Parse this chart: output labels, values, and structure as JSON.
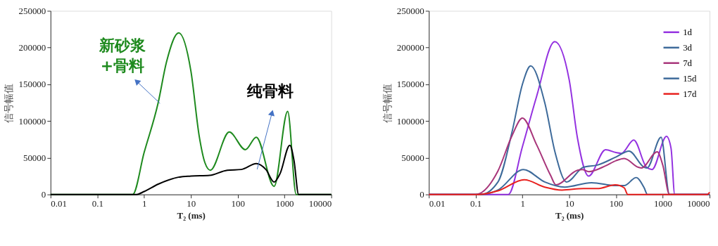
{
  "chart_data": [
    {
      "type": "line",
      "xlabel": "T₂ (ms)",
      "ylabel": "信号幅值",
      "log": "x",
      "xlim": [
        0.01,
        10000
      ],
      "xticks": [
        0.01,
        0.1,
        1,
        10,
        100,
        1000,
        10000
      ],
      "ylim": [
        0,
        250000
      ],
      "yticks": [
        0,
        50000,
        100000,
        150000,
        200000,
        250000
      ],
      "grid": false,
      "legend": false,
      "marker": "none",
      "line_style": "solid",
      "series": [
        {
          "name": "新砂浆\n+骨料",
          "color": "#1e8a1e",
          "x": [
            0.01,
            0.1,
            0.57,
            1,
            2,
            3,
            5.5,
            10,
            15,
            20,
            26,
            66,
            146,
            250,
            600,
            1170,
            1780,
            10000
          ],
          "values": [
            0,
            0,
            0,
            57000,
            125000,
            180000,
            220000,
            168000,
            80000,
            43000,
            33000,
            85000,
            61000,
            78000,
            11000,
            113000,
            0,
            0
          ]
        },
        {
          "name": "纯骨料",
          "color": "#000000",
          "x": [
            0.01,
            0.1,
            0.69,
            1,
            2,
            5,
            10,
            25,
            60,
            120,
            250,
            400,
            600,
            800,
            1300,
            1600,
            2000,
            10000
          ],
          "values": [
            0,
            0,
            0,
            4000,
            14000,
            23000,
            25000,
            26000,
            33000,
            34000,
            42000,
            34000,
            17000,
            28000,
            67000,
            46000,
            0,
            0
          ]
        }
      ]
    },
    {
      "type": "line",
      "xlabel": "T₂ (ms)",
      "ylabel": "信号幅值",
      "log": "x",
      "xlim": [
        0.01,
        10000
      ],
      "xticks": [
        0.01,
        0.1,
        1,
        10,
        100,
        1000,
        10000
      ],
      "ylim": [
        0,
        250000
      ],
      "yticks": [
        0,
        50000,
        100000,
        150000,
        200000,
        250000
      ],
      "grid": false,
      "legend": "top right",
      "marker": "none",
      "line_style": "solid",
      "series": [
        {
          "name": "1d",
          "color": "#9432e0",
          "x": [
            0.01,
            0.1,
            0.5,
            1,
            2,
            4.9,
            10,
            15,
            26,
            60,
            100,
            130,
            240,
            450,
            590,
            1200,
            1500,
            1800,
            10000
          ],
          "values": [
            0,
            0,
            0,
            65000,
            133000,
            208000,
            156000,
            77000,
            25000,
            61000,
            57000,
            56000,
            74000,
            37000,
            34000,
            79000,
            63000,
            0,
            0
          ]
        },
        {
          "name": "3d",
          "color": "#3d6a9a",
          "x": [
            0.01,
            0.13,
            0.3,
            0.6,
            1,
            1.5,
            3,
            5,
            8.8,
            20,
            40,
            100,
            190,
            400,
            460,
            920,
            1390,
            10000
          ],
          "values": [
            0,
            0,
            17000,
            85000,
            150000,
            175000,
            125000,
            57000,
            17000,
            37000,
            40000,
            51000,
            59000,
            37000,
            36000,
            78000,
            0,
            0
          ]
        },
        {
          "name": "7d",
          "color": "#a8357a",
          "x": [
            0.01,
            0.1,
            0.3,
            0.6,
            1,
            2,
            4,
            5.2,
            15,
            19,
            26,
            60,
            100,
            150,
            300,
            350,
            760,
            1000,
            1390,
            10000
          ],
          "values": [
            0,
            0,
            32000,
            80000,
            104000,
            68000,
            26000,
            13000,
            33000,
            34000,
            31000,
            39000,
            46000,
            49000,
            37000,
            36000,
            58000,
            40000,
            0,
            0
          ]
        },
        {
          "name": "15d",
          "color": "#3d6a9a",
          "x": [
            0.01,
            0.13,
            0.3,
            1.05,
            3,
            8,
            30,
            100,
            150,
            270,
            400,
            470,
            10000
          ],
          "values": [
            0,
            0,
            6000,
            34000,
            17000,
            10000,
            16000,
            12000,
            12000,
            23000,
            9000,
            0,
            0
          ]
        },
        {
          "name": "17d",
          "color": "#e8201e",
          "x": [
            0.01,
            0.12,
            0.3,
            1.1,
            3,
            7,
            20,
            40,
            96,
            150,
            178,
            9000,
            10000
          ],
          "values": [
            0,
            0,
            5000,
            20000,
            10000,
            6000,
            8000,
            8000,
            13000,
            9000,
            0,
            0,
            3000
          ]
        }
      ]
    }
  ]
}
